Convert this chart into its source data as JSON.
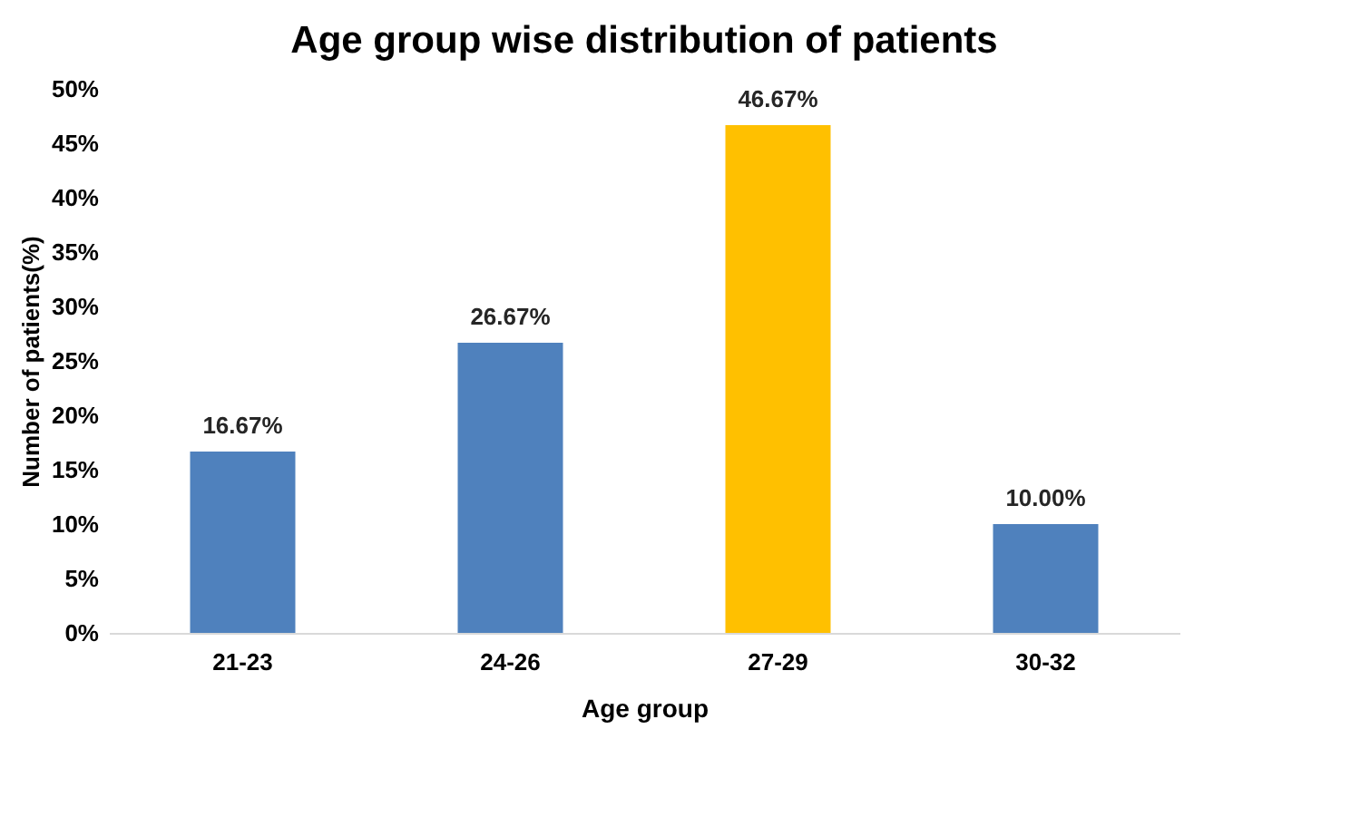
{
  "chart_data": {
    "type": "bar",
    "title": "Age group wise distribution of patients",
    "xlabel": "Age group",
    "ylabel": "Number of patients(%)",
    "categories": [
      "21-23",
      "24-26",
      "27-29",
      "30-32"
    ],
    "values": [
      16.67,
      26.67,
      46.67,
      10.0
    ],
    "colors": [
      "#4f81bd",
      "#4f81bd",
      "#ffc000",
      "#4f81bd"
    ],
    "value_labels": [
      "16.67%",
      "26.67%",
      "46.67%",
      "10.00%"
    ],
    "ylim": [
      0,
      50
    ],
    "yticks": [
      {
        "value": 0,
        "label": "0%"
      },
      {
        "value": 5,
        "label": "5%"
      },
      {
        "value": 10,
        "label": "10%"
      },
      {
        "value": 15,
        "label": "15%"
      },
      {
        "value": 20,
        "label": "20%"
      },
      {
        "value": 25,
        "label": "25%"
      },
      {
        "value": 30,
        "label": "30%"
      },
      {
        "value": 35,
        "label": "35%"
      },
      {
        "value": 40,
        "label": "40%"
      },
      {
        "value": 45,
        "label": "45%"
      },
      {
        "value": 50,
        "label": "50%"
      }
    ],
    "grid": false
  }
}
